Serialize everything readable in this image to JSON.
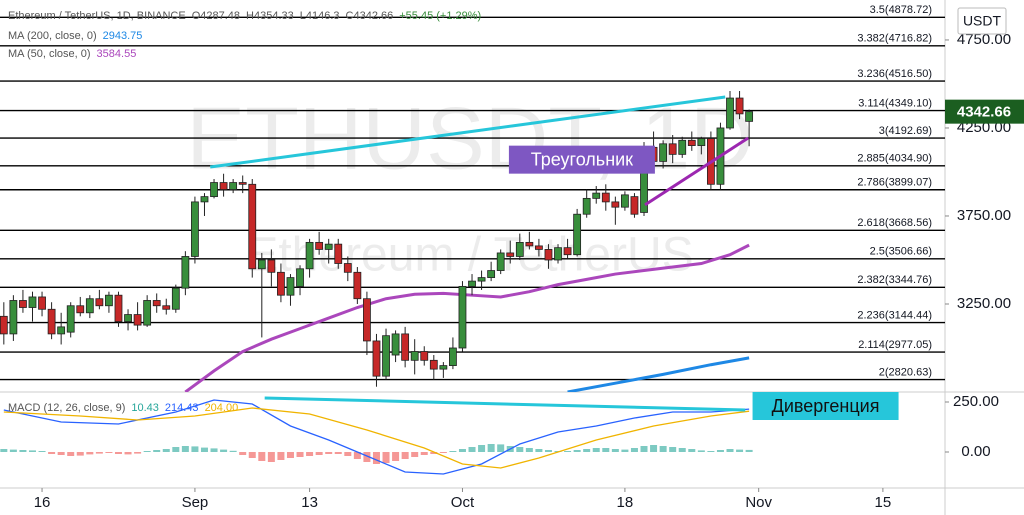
{
  "chart_data": {
    "type": "candlestick",
    "header": {
      "symbol": "Ethereum / TetherUS, 1D, BINANCE",
      "ohlc_letters": [
        "O",
        "H",
        "L",
        "C"
      ],
      "change": "+55.45 (+1.29%)"
    },
    "watermark": [
      "ETHUSDT, 1D",
      "Ethereum / TetherUS"
    ],
    "currency": "USDT",
    "up_color": "#388e3c",
    "down_color": "#c62828",
    "x": [
      -4,
      -3,
      -2,
      -1,
      0,
      1,
      2,
      3,
      4,
      5,
      6,
      7,
      8,
      9,
      10,
      11,
      12,
      13,
      14,
      15,
      16,
      17,
      18,
      19,
      20,
      21,
      22,
      23,
      24,
      25,
      26,
      27,
      28,
      29,
      30,
      31,
      32,
      33,
      34,
      35,
      36,
      37,
      38,
      39,
      40,
      41,
      42,
      43,
      44,
      45,
      46,
      47,
      48,
      49,
      50,
      51,
      52,
      53,
      54,
      55,
      56,
      57,
      58,
      59,
      60,
      61,
      62,
      63,
      64,
      65,
      66,
      67,
      68,
      69,
      70,
      71,
      72,
      73,
      74
    ],
    "open": [
      3180,
      3080,
      3270,
      3230,
      3290,
      3220,
      3080,
      3090,
      3240,
      3200,
      3280,
      3240,
      3300,
      3150,
      3190,
      3130,
      3270,
      3240,
      3220,
      3340,
      3520,
      3830,
      3860,
      3940,
      3900,
      3940,
      3930,
      3450,
      3500,
      3430,
      3300,
      3350,
      3450,
      3600,
      3560,
      3590,
      3480,
      3430,
      3280,
      3040,
      2840,
      2960,
      3080,
      2930,
      2980,
      2930,
      2880,
      2900,
      3000,
      3350,
      3380,
      3400,
      3440,
      3540,
      3520,
      3600,
      3580,
      3560,
      3500,
      3570,
      3530,
      3760,
      3850,
      3880,
      3830,
      3800,
      3860,
      3770,
      4140,
      4060,
      4160,
      4100,
      4180,
      4150,
      4190,
      3930,
      4250,
      4420,
      4287.48
    ],
    "high": [
      3260,
      3300,
      3330,
      3320,
      3320,
      3260,
      3200,
      3260,
      3290,
      3300,
      3330,
      3320,
      3320,
      3220,
      3260,
      3300,
      3310,
      3280,
      3360,
      3550,
      3860,
      3880,
      3960,
      3990,
      3960,
      3980,
      3960,
      3540,
      3560,
      3480,
      3420,
      3470,
      3620,
      3660,
      3620,
      3620,
      3520,
      3460,
      3320,
      3080,
      3110,
      3100,
      3120,
      3050,
      3010,
      2960,
      2920,
      3060,
      3380,
      3420,
      3440,
      3490,
      3560,
      3610,
      3650,
      3660,
      3620,
      3590,
      3590,
      3620,
      3790,
      3900,
      3920,
      3930,
      3860,
      3890,
      3880,
      4170,
      4230,
      4180,
      4210,
      4200,
      4230,
      4200,
      4230,
      4280,
      4460,
      4460,
      4354.33
    ],
    "low": [
      3020,
      3040,
      3200,
      3150,
      3180,
      3050,
      3020,
      3060,
      3180,
      3170,
      3220,
      3200,
      3120,
      3100,
      3100,
      3120,
      3200,
      3190,
      3200,
      3300,
      3480,
      3750,
      3850,
      3860,
      3880,
      3880,
      3400,
      3060,
      3350,
      3260,
      3240,
      3300,
      3400,
      3530,
      3480,
      3450,
      3380,
      3250,
      2960,
      2780,
      2820,
      2920,
      2890,
      2850,
      2900,
      2820,
      2830,
      2880,
      2980,
      3300,
      3330,
      3380,
      3420,
      3480,
      3500,
      3560,
      3520,
      3450,
      3480,
      3510,
      3520,
      3740,
      3820,
      3780,
      3700,
      3780,
      3740,
      3750,
      4000,
      4020,
      4050,
      4080,
      4120,
      4100,
      3900,
      3900,
      4240,
      4300,
      4146.3
    ],
    "close": [
      3080,
      3270,
      3230,
      3290,
      3220,
      3080,
      3120,
      3240,
      3200,
      3280,
      3240,
      3300,
      3150,
      3190,
      3130,
      3270,
      3240,
      3220,
      3340,
      3520,
      3830,
      3860,
      3940,
      3900,
      3940,
      3930,
      3450,
      3500,
      3430,
      3300,
      3400,
      3450,
      3600,
      3560,
      3590,
      3480,
      3430,
      3280,
      3040,
      2840,
      3070,
      3080,
      2930,
      2980,
      2930,
      2880,
      2900,
      3000,
      3350,
      3380,
      3400,
      3440,
      3540,
      3520,
      3600,
      3580,
      3560,
      3500,
      3570,
      3530,
      3760,
      3850,
      3880,
      3830,
      3800,
      3870,
      3760,
      4140,
      4060,
      4160,
      4100,
      4180,
      4150,
      4190,
      3930,
      4250,
      4420,
      4330,
      4342.66
    ],
    "ma_series": [
      {
        "name": "MA (200, close, 0)",
        "color": "#1e88e5",
        "x": [
          55,
          60,
          65,
          70,
          74
        ],
        "values": [
          2750,
          2800,
          2850,
          2905,
          2943.75
        ]
      },
      {
        "name": "MA (50, close, 0)",
        "color": "#ab47bc",
        "x": [
          15,
          18,
          21,
          24,
          27,
          30,
          33,
          36,
          39,
          42,
          45,
          48,
          51,
          54,
          57,
          60,
          63,
          66,
          69,
          72,
          74
        ],
        "values": [
          2750,
          2870,
          2980,
          3050,
          3110,
          3170,
          3230,
          3280,
          3305,
          3310,
          3300,
          3290,
          3320,
          3360,
          3390,
          3420,
          3440,
          3460,
          3480,
          3530,
          3584.55
        ]
      }
    ],
    "fib_levels": [
      {
        "value": 4878.72,
        "label": "3.5(4878.72)"
      },
      {
        "value": 4716.82,
        "label": "3.382(4716.82)"
      },
      {
        "value": 4516.5,
        "label": "3.236(4516.50)"
      },
      {
        "value": 4349.1,
        "label": "3.114(4349.10)"
      },
      {
        "value": 4192.69,
        "label": "3(4192.69)"
      },
      {
        "value": 4034.9,
        "label": "2.885(4034.90)"
      },
      {
        "value": 3899.07,
        "label": "2.786(3899.07)"
      },
      {
        "value": 3668.56,
        "label": "2.618(3668.56)"
      },
      {
        "value": 3506.66,
        "label": "2.5(3506.66)"
      },
      {
        "value": 3344.76,
        "label": "2.382(3344.76)"
      },
      {
        "value": 3144.44,
        "label": "2.236(3144.44)"
      },
      {
        "value": 2977.05,
        "label": "2.114(2977.05)"
      },
      {
        "value": 2820.63,
        "label": "2(2820.63)"
      }
    ],
    "trendlines": [
      {
        "color": "#26c6da",
        "x": [
          17.6,
          71.5
        ],
        "y": [
          4028,
          4426
        ]
      },
      {
        "color": "#9c27b0",
        "x": [
          63.1,
          73.9
        ],
        "y": [
          3813,
          4193
        ]
      }
    ],
    "annotations": [
      {
        "text": "Треугольник",
        "color": "#7e57c2",
        "text_color": "#ffffff",
        "x": 56.5,
        "y": 4070
      },
      {
        "text": "Дивергенция",
        "color": "#26c6da",
        "text_color": "#111111",
        "x": 82,
        "y": 230
      }
    ],
    "xlim": [
      -4.4,
      94.5
    ],
    "ylim": [
      2750,
      4977
    ],
    "yticks": [
      {
        "value": 4750,
        "label": "4750.00"
      },
      {
        "value": 4250,
        "label": "4250.00"
      },
      {
        "value": 3750,
        "label": "3750.00"
      },
      {
        "value": 3250,
        "label": "3250.00"
      }
    ],
    "xticks": [
      {
        "value": 0,
        "label": "16"
      },
      {
        "value": 16,
        "label": "Sep"
      },
      {
        "value": 28,
        "label": "13"
      },
      {
        "value": 44,
        "label": "Oct"
      },
      {
        "value": 61,
        "label": "18"
      },
      {
        "value": 75,
        "label": "Nov"
      },
      {
        "value": 88,
        "label": "15"
      }
    ],
    "macd": {
      "title": "MACD (12, 26, close, 9)",
      "legend_values": [
        "10.43",
        "214.43",
        "204.00"
      ],
      "legend_colors": [
        "#26a69a",
        "#2962ff",
        "#f0b400"
      ],
      "ylim": [
        -180,
        295
      ],
      "yticks": [
        {
          "value": 250,
          "label": "250.00"
        },
        {
          "value": 0,
          "label": "0.00"
        }
      ],
      "hist_pos_color": "#26a69a",
      "hist_neg_color": "#ef5350",
      "histogram": [
        15,
        12,
        10,
        8,
        5,
        -10,
        -15,
        -20,
        -18,
        -12,
        -8,
        -5,
        -10,
        -12,
        -8,
        5,
        10,
        15,
        25,
        30,
        28,
        22,
        18,
        12,
        6,
        -15,
        -30,
        -45,
        -50,
        -40,
        -30,
        -25,
        -20,
        -15,
        -10,
        -10,
        -20,
        -35,
        -50,
        -60,
        -55,
        -45,
        -35,
        -25,
        -15,
        -10,
        -5,
        5,
        15,
        25,
        35,
        40,
        38,
        30,
        25,
        20,
        15,
        10,
        5,
        5,
        10,
        15,
        20,
        20,
        15,
        12,
        20,
        30,
        35,
        30,
        25,
        20,
        15,
        8,
        5,
        10,
        15,
        12,
        10.43
      ],
      "lines": [
        {
          "color": "#2962ff",
          "x": [
            -4,
            2,
            8,
            14,
            18,
            22,
            26,
            30,
            34,
            38,
            42,
            46,
            50,
            54,
            58,
            62,
            66,
            70,
            74
          ],
          "values": [
            210,
            150,
            140,
            200,
            260,
            240,
            130,
            60,
            -20,
            -100,
            -110,
            -60,
            40,
            100,
            130,
            170,
            200,
            200,
            214.43
          ]
        },
        {
          "color": "#f0b400",
          "x": [
            -4,
            4,
            10,
            16,
            22,
            28,
            34,
            40,
            44,
            48,
            52,
            58,
            64,
            70,
            74
          ],
          "values": [
            200,
            180,
            160,
            180,
            220,
            190,
            110,
            20,
            -60,
            -80,
            -30,
            60,
            130,
            180,
            204
          ]
        }
      ],
      "trendline": {
        "color": "#26c6da",
        "x": [
          23.3,
          73.6
        ],
        "y": [
          270,
          210
        ]
      }
    }
  }
}
